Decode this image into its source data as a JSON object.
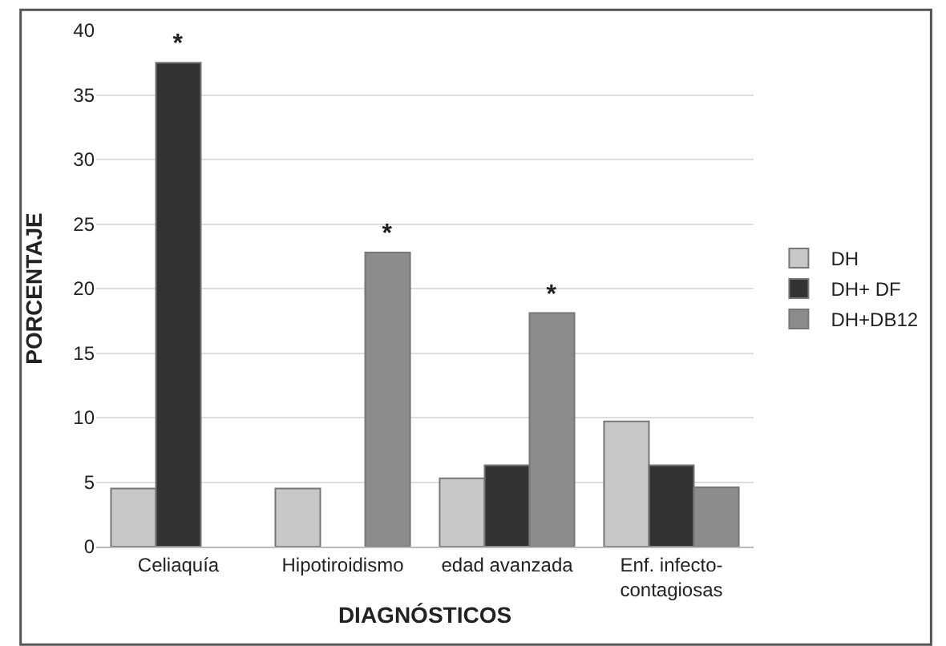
{
  "chart_data": {
    "type": "bar",
    "xlabel": "DIAGNÓSTICOS",
    "ylabel": "PORCENTAJE",
    "categories": [
      "Celiaquía",
      "Hipotiroidismo",
      "edad avanzada",
      "Enf. infecto-\ncontagiosas"
    ],
    "series": [
      {
        "name": "DH",
        "color": "#c8c8c8",
        "values": [
          4.5,
          4.5,
          5.3,
          9.7
        ]
      },
      {
        "name": "DH+ DF",
        "color": "#333333",
        "values": [
          37.5,
          null,
          6.3,
          6.3
        ],
        "value_labels": [
          "*",
          null,
          null,
          null
        ]
      },
      {
        "name": "DH+DB12",
        "color": "#8c8c8c",
        "values": [
          null,
          22.8,
          18.1,
          4.6
        ],
        "value_labels": [
          null,
          "*",
          "*",
          null
        ]
      }
    ],
    "ylim": [
      0,
      40
    ],
    "yticks": [
      0,
      5,
      10,
      15,
      20,
      25,
      30,
      35,
      40
    ],
    "grid": "y",
    "legend": "right"
  }
}
